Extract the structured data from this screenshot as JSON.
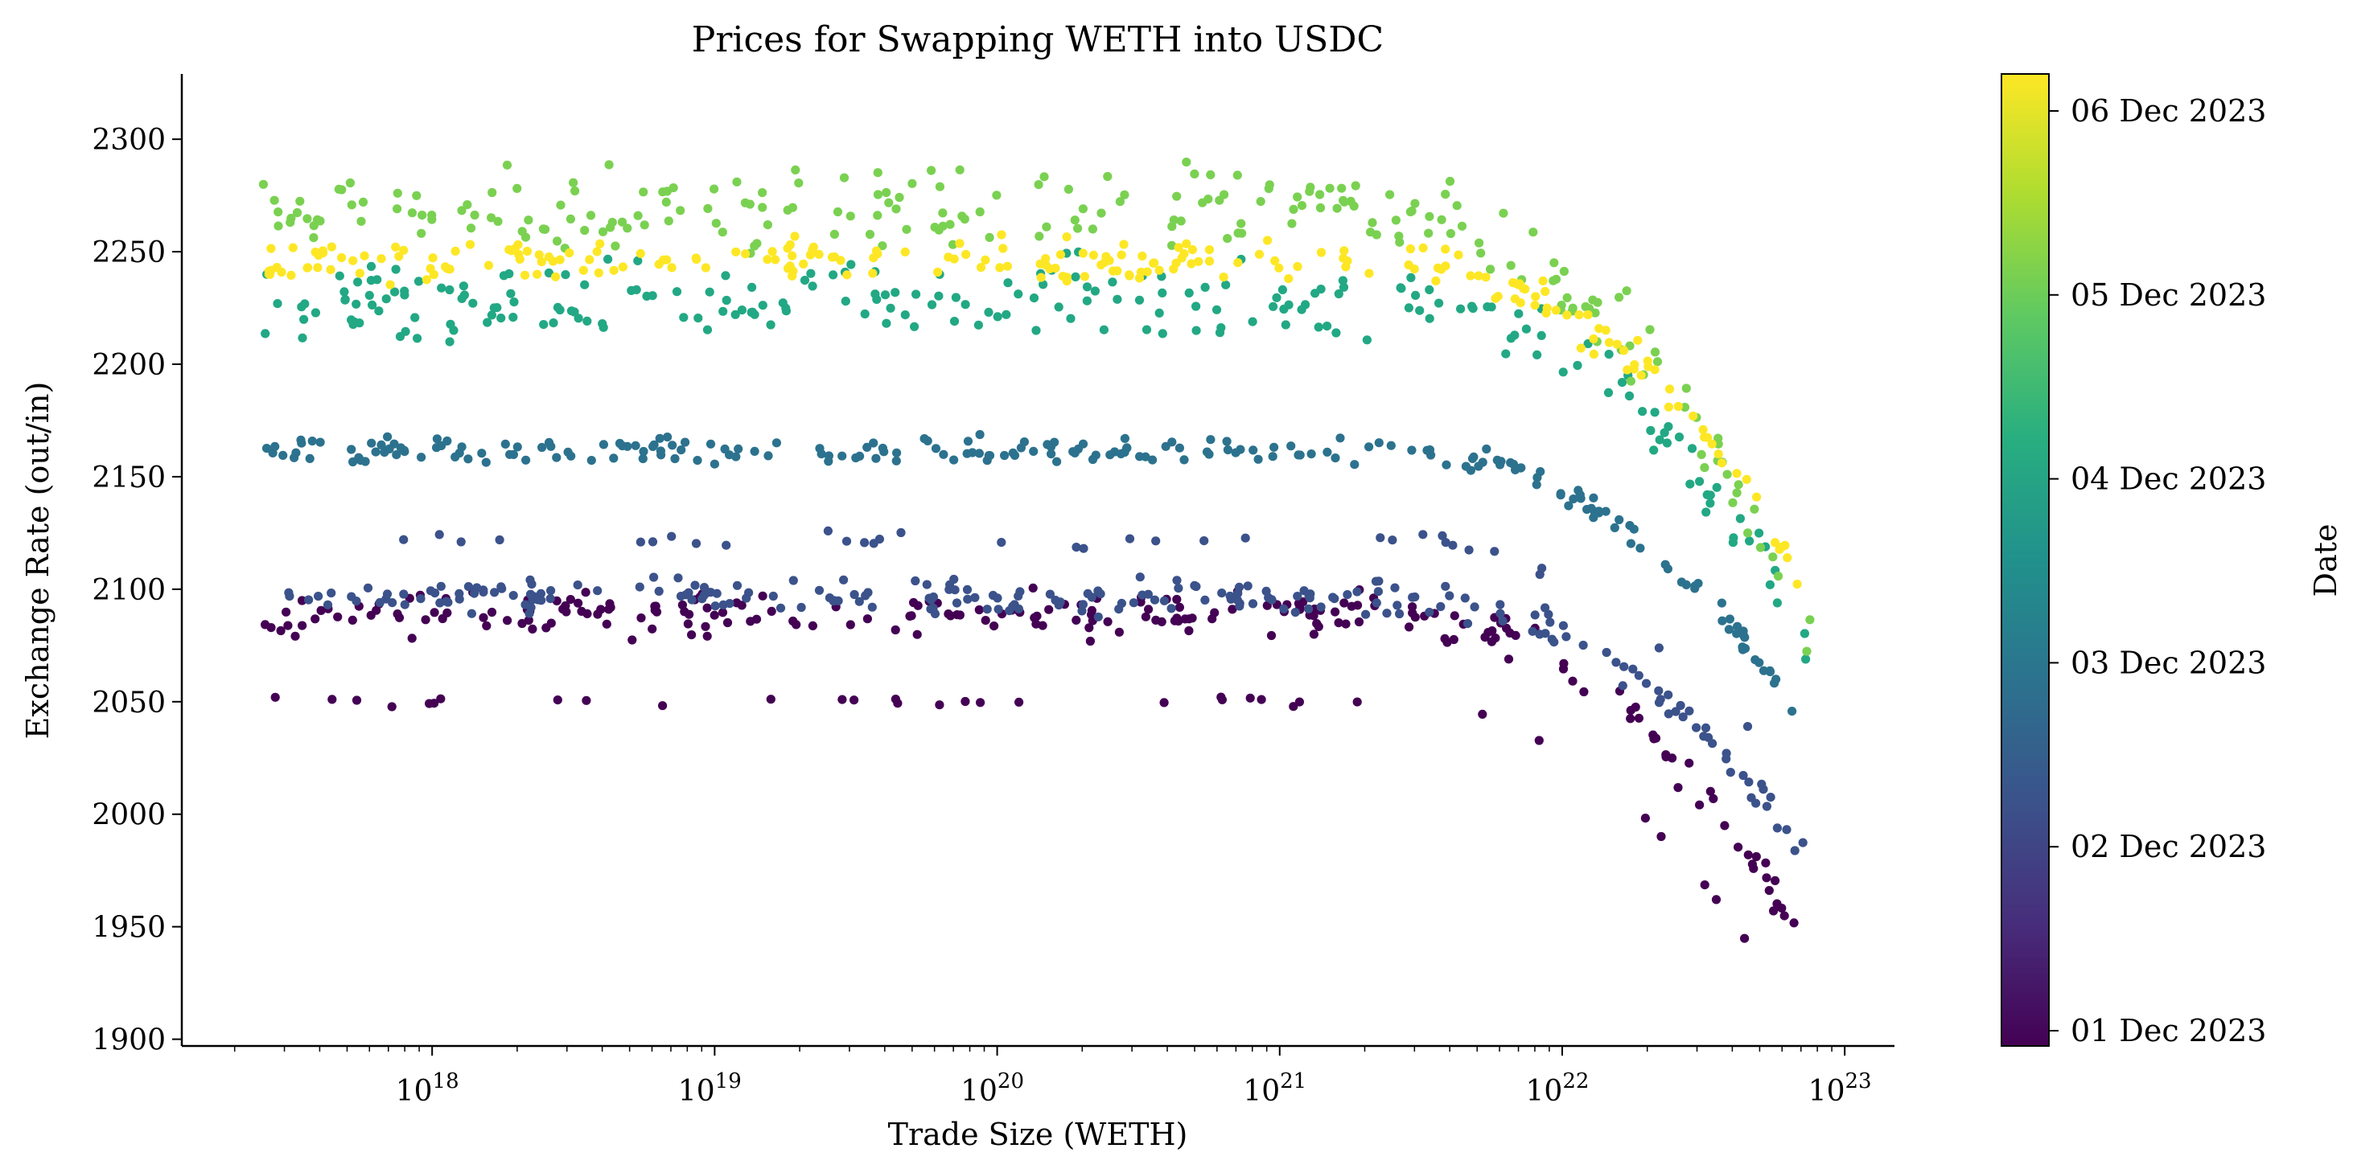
{
  "chart_data": {
    "type": "scatter",
    "title": "Prices for Swapping WETH into USDC",
    "xlabel": "Trade Size (WETH)",
    "ylabel": "Exchange Rate (out/in)",
    "x_scale": "log",
    "xlim": [
      1.3e+17,
      1.5e+23
    ],
    "ylim": [
      1897,
      2329
    ],
    "x_ticks": [
      {
        "base": "10",
        "exp": "18",
        "value": 1e+18
      },
      {
        "base": "10",
        "exp": "19",
        "value": 1e+19
      },
      {
        "base": "10",
        "exp": "20",
        "value": 1e+20
      },
      {
        "base": "10",
        "exp": "21",
        "value": 1e+21
      },
      {
        "base": "10",
        "exp": "22",
        "value": 1e+22
      },
      {
        "base": "10",
        "exp": "23",
        "value": 1e+23
      }
    ],
    "y_ticks": [
      "1900",
      "1950",
      "2000",
      "2050",
      "2100",
      "2150",
      "2200",
      "2250",
      "2300"
    ],
    "grid": false,
    "colorbar": {
      "label": "Date",
      "colormap": "viridis",
      "ticks": [
        "01 Dec 2023",
        "02 Dec 2023",
        "03 Dec 2023",
        "04 Dec 2023",
        "05 Dec 2023",
        "06 Dec 2023"
      ]
    },
    "point_color_encoding": "Date",
    "x_range_plotted": [
      2.5e+17,
      7.6e+22
    ],
    "bands": [
      {
        "date": "01 Dec 2023",
        "rate_flat": 2089,
        "spread": 8
      },
      {
        "date": "01 Dec 2023",
        "rate_flat": 2050,
        "spread": 2,
        "sparse": true
      },
      {
        "date": "02 Dec 2023",
        "rate_flat": 2097,
        "spread": 6
      },
      {
        "date": "02 Dec 2023",
        "rate_flat": 2122,
        "spread": 3,
        "sparse": true
      },
      {
        "date": "03 Dec 2023",
        "rate_flat": 2161,
        "spread": 5
      },
      {
        "date": "04 Dec 2023",
        "rate_flat": 2228,
        "spread": 14
      },
      {
        "date": "05 Dec 2023",
        "rate_flat": 2268,
        "spread": 16
      },
      {
        "date": "06 Dec 2023",
        "rate_flat": 2246,
        "spread": 8
      }
    ]
  }
}
